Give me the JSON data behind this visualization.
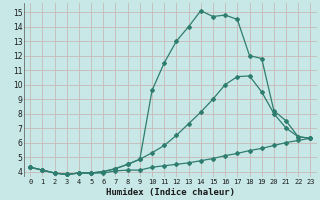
{
  "xlabel": "Humidex (Indice chaleur)",
  "bg_color": "#c8e8e8",
  "grid_color": "#aad4d4",
  "line_color": "#2e7d6e",
  "xlim": [
    -0.5,
    23.5
  ],
  "ylim": [
    3.6,
    15.6
  ],
  "xticks": [
    0,
    1,
    2,
    3,
    4,
    5,
    6,
    7,
    8,
    9,
    10,
    11,
    12,
    13,
    14,
    15,
    16,
    17,
    18,
    19,
    20,
    21,
    22,
    23
  ],
  "yticks": [
    4,
    5,
    6,
    7,
    8,
    9,
    10,
    11,
    12,
    13,
    14,
    15
  ],
  "line1_x": [
    0,
    1,
    2,
    3,
    4,
    5,
    6,
    7,
    8,
    9,
    10,
    11,
    12,
    13,
    14,
    15,
    16,
    17,
    18,
    19,
    20,
    21,
    22,
    23
  ],
  "line1_y": [
    4.3,
    4.1,
    3.9,
    3.8,
    3.9,
    3.9,
    3.9,
    4.05,
    4.1,
    4.1,
    4.3,
    4.4,
    4.5,
    4.6,
    4.75,
    4.9,
    5.1,
    5.25,
    5.45,
    5.6,
    5.8,
    6.0,
    6.15,
    6.3
  ],
  "line2_x": [
    0,
    1,
    2,
    3,
    4,
    5,
    6,
    7,
    8,
    9,
    10,
    11,
    12,
    13,
    14,
    15,
    16,
    17,
    18,
    19,
    20,
    21,
    22,
    23
  ],
  "line2_y": [
    4.3,
    4.1,
    3.9,
    3.8,
    3.9,
    3.9,
    4.0,
    4.2,
    4.5,
    4.85,
    5.3,
    5.8,
    6.5,
    7.3,
    8.1,
    9.0,
    10.0,
    10.55,
    10.6,
    9.5,
    8.0,
    7.0,
    6.4,
    6.3
  ],
  "line3_x": [
    0,
    1,
    2,
    3,
    4,
    5,
    6,
    7,
    8,
    9,
    10,
    11,
    12,
    13,
    14,
    15,
    16,
    17,
    18,
    19,
    20,
    21,
    22,
    23
  ],
  "line3_y": [
    4.3,
    4.1,
    3.9,
    3.8,
    3.9,
    3.9,
    4.0,
    4.2,
    4.5,
    4.85,
    9.6,
    11.5,
    13.0,
    14.0,
    15.1,
    14.7,
    14.8,
    14.5,
    12.0,
    11.8,
    8.2,
    7.5,
    6.4,
    6.3
  ]
}
